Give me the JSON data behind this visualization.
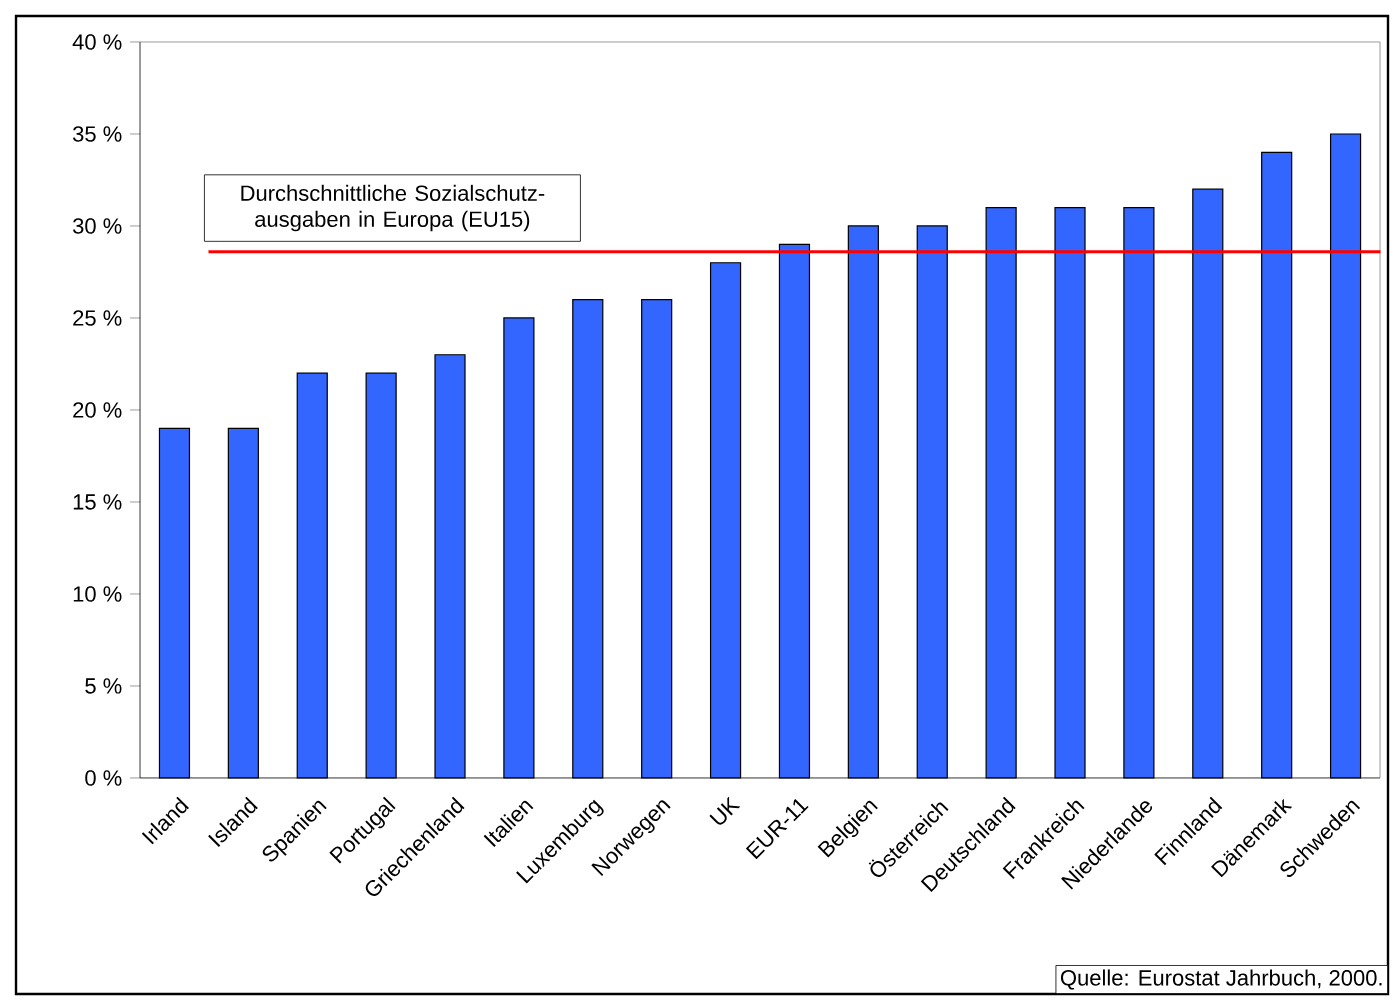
{
  "chart_data": {
    "type": "bar",
    "categories": [
      "Irland",
      "Island",
      "Spanien",
      "Portugal",
      "Griechenland",
      "Italien",
      "Luxemburg",
      "Norwegen",
      "UK",
      "EUR-11",
      "Belgien",
      "Österreich",
      "Deutschland",
      "Frankreich",
      "Niederlande",
      "Finnland",
      "Dänemark",
      "Schweden"
    ],
    "values": [
      19,
      19,
      22,
      22,
      23,
      25,
      26,
      26,
      28,
      29,
      30,
      30,
      31,
      31,
      31,
      32,
      34,
      35
    ],
    "color": "#3366ff",
    "ylim": [
      0,
      40
    ],
    "yticks": [
      {
        "value": 0,
        "label": "0 %"
      },
      {
        "value": 5,
        "label": "5 %"
      },
      {
        "value": 10,
        "label": "10 %"
      },
      {
        "value": 15,
        "label": "15 %"
      },
      {
        "value": 20,
        "label": "20 %"
      },
      {
        "value": 25,
        "label": "25 %"
      },
      {
        "value": 30,
        "label": "30 %"
      },
      {
        "value": 35,
        "label": "35 %"
      },
      {
        "value": 40,
        "label": "40 %"
      }
    ],
    "ref_lines": [
      {
        "axis": "y",
        "value": 28.6,
        "label": "Durchschnittliche Sozialschutz-ausgaben in Europa (EU15)",
        "color": "#ff0000"
      }
    ],
    "annotations": [
      "Quelle: Eurostat Jahrbuch, 2000."
    ]
  }
}
